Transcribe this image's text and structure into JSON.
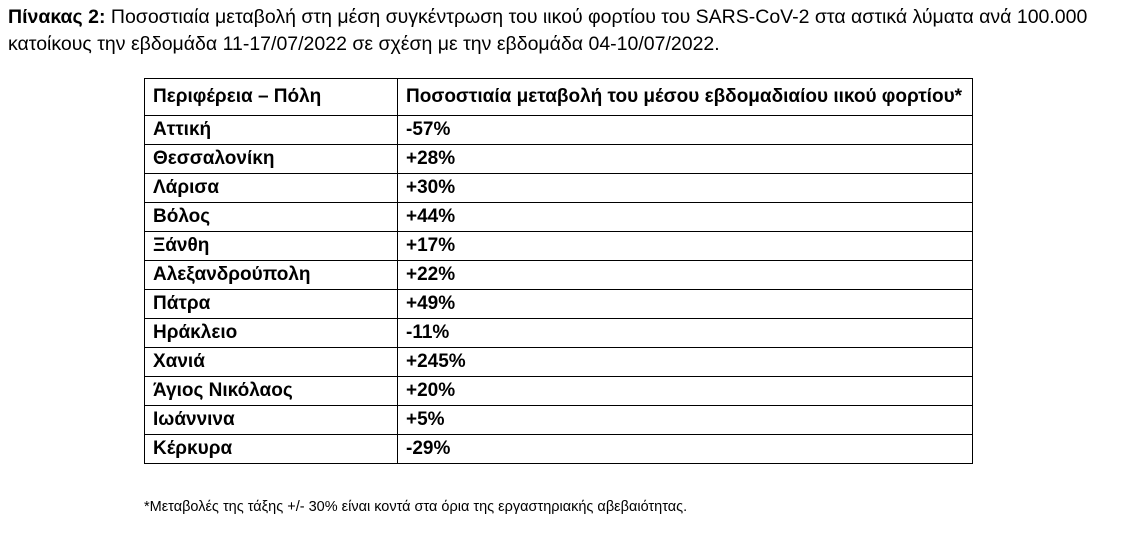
{
  "caption": {
    "label": "Πίνακας 2:",
    "text": "Ποσοστιαία μεταβολή στη μέση συγκέντρωση του ιικού φορτίου του SARS-CoV-2 στα αστικά λύματα ανά 100.000 κατοίκους την εβδομάδα 11-17/07/2022 σε σχέση με την εβδομάδα 04-10/07/2022."
  },
  "table": {
    "headers": [
      "Περιφέρεια – Πόλη",
      "Ποσοστιαία μεταβολή του μέσου εβδομαδιαίου ιικού φορτίου*"
    ],
    "rows": [
      [
        "Αττική",
        "-57%"
      ],
      [
        "Θεσσαλονίκη",
        "+28%"
      ],
      [
        "Λάρισα",
        "+30%"
      ],
      [
        "Βόλος",
        "+44%"
      ],
      [
        "Ξάνθη",
        "+17%"
      ],
      [
        "Αλεξανδρούπολη",
        "+22%"
      ],
      [
        "Πάτρα",
        "+49%"
      ],
      [
        "Ηράκλειο",
        "-11%"
      ],
      [
        "Χανιά",
        "+245%"
      ],
      [
        "Άγιος Νικόλαος",
        "+20%"
      ],
      [
        "Ιωάννινα",
        "+5%"
      ],
      [
        "Κέρκυρα",
        "-29%"
      ]
    ]
  },
  "footnote": "*Μεταβολές της τάξης +/- 30% είναι κοντά στα όρια της εργαστηριακής αβεβαιότητας."
}
